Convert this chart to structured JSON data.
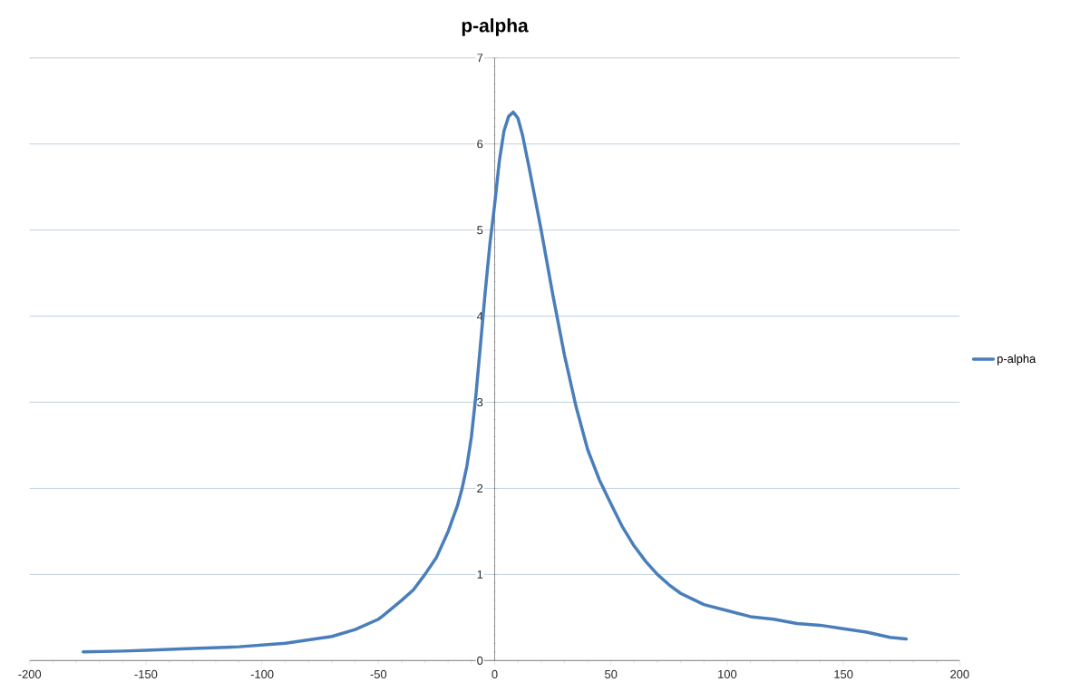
{
  "chart_data": {
    "type": "line",
    "title": "p-alpha",
    "x": [
      -177,
      -160,
      -150,
      -140,
      -130,
      -120,
      -110,
      -100,
      -90,
      -80,
      -70,
      -60,
      -50,
      -48,
      -40,
      -35,
      -30,
      -25,
      -20,
      -16,
      -14,
      -12,
      -10,
      -8,
      -6,
      -4,
      -2,
      0,
      2,
      4,
      6,
      8,
      10,
      12,
      15,
      20,
      25,
      30,
      35,
      40,
      45,
      50,
      55,
      60,
      65,
      70,
      75,
      80,
      90,
      100,
      110,
      120,
      130,
      140,
      150,
      160,
      170,
      177
    ],
    "series": [
      {
        "name": "p-alpha",
        "color": "#4a7ebb",
        "values": [
          0.1,
          0.11,
          0.12,
          0.13,
          0.14,
          0.15,
          0.16,
          0.18,
          0.2,
          0.24,
          0.28,
          0.36,
          0.48,
          0.52,
          0.7,
          0.82,
          1.0,
          1.2,
          1.5,
          1.8,
          2.0,
          2.25,
          2.6,
          3.1,
          3.7,
          4.3,
          4.85,
          5.3,
          5.8,
          6.15,
          6.32,
          6.37,
          6.3,
          6.1,
          5.7,
          5.0,
          4.25,
          3.55,
          2.95,
          2.45,
          2.1,
          1.82,
          1.55,
          1.33,
          1.15,
          1.0,
          0.88,
          0.78,
          0.65,
          0.58,
          0.51,
          0.48,
          0.43,
          0.41,
          0.37,
          0.33,
          0.27,
          0.25
        ]
      }
    ],
    "xlim": [
      -200,
      200
    ],
    "xticks": [
      -200,
      -150,
      -100,
      -50,
      0,
      50,
      100,
      150,
      200
    ],
    "ylim": [
      0,
      7
    ],
    "yticks": [
      0,
      1,
      2,
      3,
      4,
      5,
      6,
      7
    ],
    "grid": "y",
    "legend": "right",
    "marker": "none",
    "line_style": "solid"
  }
}
